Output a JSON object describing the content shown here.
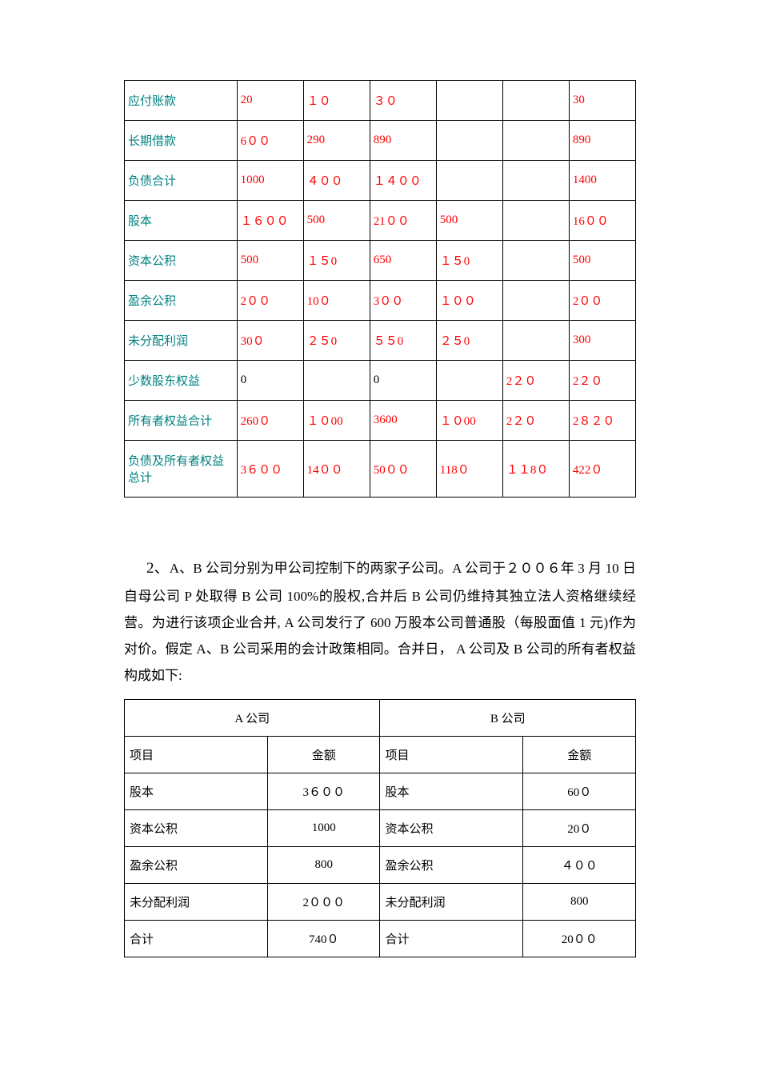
{
  "table1": {
    "col_widths": [
      "20%",
      "12%",
      "12%",
      "12%",
      "12%",
      "12%",
      "12%"
    ],
    "rows": [
      {
        "label": "应付账款",
        "c1": "20",
        "c2": "１０",
        "c3": "３０",
        "c4": "",
        "c5": "",
        "c6": "30"
      },
      {
        "label": "长期借款",
        "c1": "6００",
        "c2": "290",
        "c3": "890",
        "c4": "",
        "c5": "",
        "c6": "890"
      },
      {
        "label": "负债合计",
        "c1": "1000",
        "c2": "４００",
        "c3": "１４００",
        "c4": "",
        "c5": "",
        "c6": "1400"
      },
      {
        "label": "股本",
        "c1": "１６００",
        "c2": "500",
        "c3": "21００",
        "c4": "500",
        "c5": "",
        "c6": "16００"
      },
      {
        "label": "资本公积",
        "c1": "500",
        "c2": "１５0",
        "c3": "650",
        "c4": "１５0",
        "c5": "",
        "c6": "500"
      },
      {
        "label": "盈余公积",
        "c1": "2００",
        "c2": "10０",
        "c3": "3００",
        "c4": "１００",
        "c5": "",
        "c6": "2００"
      },
      {
        "label": "未分配利润",
        "c1": "30０",
        "c2": "２５0",
        "c3": "５５0",
        "c4": "２５0",
        "c5": "",
        "c6": "300"
      },
      {
        "label": "少数股东权益",
        "c1": "0",
        "c1_black": true,
        "c2": "",
        "c3": "0",
        "c3_black": true,
        "c4": "",
        "c5": "2２０",
        "c6": "2２０"
      },
      {
        "label": "所有者权益合计",
        "c1": "260０",
        "c2": "１０00",
        "c3": "3600",
        "c4": "１０00",
        "c5": "2２０",
        "c6": "2８２０"
      },
      {
        "label": "负债及所有者权益总计",
        "c1": "3６００",
        "c2": "14００",
        "c3": "50００",
        "c4": "118０",
        "c5": "１１8０",
        "c6": "422０"
      }
    ]
  },
  "paragraph": {
    "lead_label": "2、",
    "text": "A、B 公司分别为甲公司控制下的两家子公司。A 公司于２００６年 3 月 10 日自母公司 P 处取得 B 公司 100%的股权,合并后 B 公司仍维持其独立法人资格继续经营。为进行该项企业合并, A 公司发行了 600 万股本公司普通股（每股面值 1 元)作为对价。假定 A、B 公司采用的会计政策相同。合并日， A 公司及 B 公司的所有者权益构成如下:"
  },
  "table2": {
    "headers": {
      "a": "A 公司",
      "b": "B 公司"
    },
    "cols": {
      "item": "项目",
      "amount": "金额"
    },
    "rows": [
      {
        "a_item": "股本",
        "a_amount": "3６００",
        "b_item": "股本",
        "b_amount": "60０"
      },
      {
        "a_item": "资本公积",
        "a_amount": "1000",
        "b_item": "资本公积",
        "b_amount": "20０"
      },
      {
        "a_item": "盈余公积",
        "a_amount": "800",
        "b_item": "盈余公积",
        "b_amount": "４００"
      },
      {
        "a_item": "未分配利润",
        "a_amount": "2０００",
        "b_item": "未分配利润",
        "b_amount": "800"
      },
      {
        "a_item": "合计",
        "a_amount": "740０",
        "b_item": "合计",
        "b_amount": "20００"
      }
    ]
  }
}
